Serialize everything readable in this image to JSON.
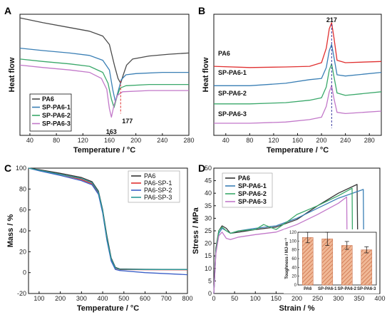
{
  "chart_data": [
    {
      "panel": "A",
      "type": "line",
      "xlabel": "Temperature / °C",
      "ylabel": "Heat flow",
      "xlim": [
        25,
        280
      ],
      "xticks": [
        40,
        80,
        120,
        160,
        200,
        240,
        280
      ],
      "legend_position": "bottom-left",
      "annotations": [
        "177",
        "163"
      ],
      "series": [
        {
          "name": "PA6",
          "color": "#4a4a4a",
          "points": [
            [
              25,
              0.97
            ],
            [
              60,
              0.93
            ],
            [
              100,
              0.89
            ],
            [
              130,
              0.86
            ],
            [
              150,
              0.82
            ],
            [
              160,
              0.75
            ],
            [
              168,
              0.57
            ],
            [
              173,
              0.47
            ],
            [
              177,
              0.43
            ],
            [
              181,
              0.5
            ],
            [
              186,
              0.58
            ],
            [
              195,
              0.63
            ],
            [
              220,
              0.655
            ],
            [
              250,
              0.67
            ],
            [
              280,
              0.68
            ]
          ]
        },
        {
          "name": "SP-PA6-1",
          "color": "#3a7fb5",
          "points": [
            [
              25,
              0.72
            ],
            [
              60,
              0.7
            ],
            [
              100,
              0.68
            ],
            [
              130,
              0.66
            ],
            [
              150,
              0.62
            ],
            [
              160,
              0.54
            ],
            [
              165,
              0.38
            ],
            [
              169,
              0.28
            ],
            [
              173,
              0.36
            ],
            [
              178,
              0.46
            ],
            [
              185,
              0.5
            ],
            [
              200,
              0.51
            ],
            [
              240,
              0.52
            ],
            [
              280,
              0.52
            ]
          ]
        },
        {
          "name": "SP-PA6-2",
          "color": "#3aa86a",
          "points": [
            [
              25,
              0.63
            ],
            [
              60,
              0.61
            ],
            [
              100,
              0.59
            ],
            [
              130,
              0.57
            ],
            [
              150,
              0.52
            ],
            [
              158,
              0.43
            ],
            [
              163,
              0.3
            ],
            [
              167,
              0.23
            ],
            [
              171,
              0.31
            ],
            [
              176,
              0.39
            ],
            [
              185,
              0.41
            ],
            [
              220,
              0.42
            ],
            [
              280,
              0.42
            ]
          ]
        },
        {
          "name": "SP-PA6-3",
          "color": "#c278c9",
          "points": [
            [
              25,
              0.58
            ],
            [
              60,
              0.56
            ],
            [
              100,
              0.54
            ],
            [
              130,
              0.52
            ],
            [
              148,
              0.47
            ],
            [
              156,
              0.38
            ],
            [
              160,
              0.22
            ],
            [
              163,
              0.15
            ],
            [
              167,
              0.25
            ],
            [
              172,
              0.33
            ],
            [
              180,
              0.36
            ],
            [
              220,
              0.37
            ],
            [
              280,
              0.37
            ]
          ]
        }
      ]
    },
    {
      "panel": "B",
      "type": "line",
      "xlabel": "Temperature / °C",
      "ylabel": "Heat flow",
      "xlim": [
        20,
        300
      ],
      "xticks": [
        40,
        80,
        120,
        160,
        200,
        240,
        280
      ],
      "annotations": [
        "217"
      ],
      "series": [
        {
          "name": "PA6",
          "color": "#e03030",
          "points": [
            [
              20,
              0.57
            ],
            [
              80,
              0.56
            ],
            [
              140,
              0.565
            ],
            [
              180,
              0.57
            ],
            [
              200,
              0.6
            ],
            [
              208,
              0.72
            ],
            [
              213,
              0.88
            ],
            [
              217,
              0.93
            ],
            [
              221,
              0.8
            ],
            [
              226,
              0.62
            ],
            [
              240,
              0.6
            ],
            [
              300,
              0.61
            ]
          ]
        },
        {
          "name": "SP-PA6-1",
          "color": "#3a7fb5",
          "points": [
            [
              20,
              0.41
            ],
            [
              80,
              0.41
            ],
            [
              140,
              0.43
            ],
            [
              180,
              0.46
            ],
            [
              200,
              0.47
            ],
            [
              208,
              0.56
            ],
            [
              213,
              0.7
            ],
            [
              217,
              0.75
            ],
            [
              221,
              0.64
            ],
            [
              226,
              0.5
            ],
            [
              240,
              0.49
            ],
            [
              300,
              0.52
            ]
          ]
        },
        {
          "name": "SP-PA6-2",
          "color": "#3aa86a",
          "points": [
            [
              20,
              0.26
            ],
            [
              80,
              0.26
            ],
            [
              140,
              0.27
            ],
            [
              180,
              0.29
            ],
            [
              200,
              0.31
            ],
            [
              208,
              0.4
            ],
            [
              213,
              0.54
            ],
            [
              217,
              0.59
            ],
            [
              221,
              0.48
            ],
            [
              226,
              0.35
            ],
            [
              240,
              0.33
            ],
            [
              300,
              0.36
            ]
          ]
        },
        {
          "name": "SP-PA6-3",
          "color": "#c278c9",
          "points": [
            [
              20,
              0.1
            ],
            [
              80,
              0.1
            ],
            [
              140,
              0.11
            ],
            [
              180,
              0.13
            ],
            [
              200,
              0.15
            ],
            [
              208,
              0.24
            ],
            [
              213,
              0.36
            ],
            [
              217,
              0.41
            ],
            [
              221,
              0.3
            ],
            [
              226,
              0.19
            ],
            [
              240,
              0.18
            ],
            [
              300,
              0.2
            ]
          ]
        }
      ],
      "series_labels": [
        "PA6",
        "SP-PA6-1",
        "SP-PA6-2",
        "SP-PA6-3"
      ]
    },
    {
      "panel": "C",
      "type": "line",
      "xlabel": "Temperature / °C",
      "ylabel": "Mass / %",
      "xlim": [
        50,
        800
      ],
      "ylim": [
        -20,
        100
      ],
      "xticks": [
        100,
        200,
        300,
        400,
        500,
        600,
        700,
        800
      ],
      "yticks": [
        -20,
        0,
        20,
        40,
        60,
        80,
        100
      ],
      "legend_position": "top-right",
      "series": [
        {
          "name": "PA6",
          "color": "#333333",
          "points": [
            [
              50,
              100
            ],
            [
              100,
              98.5
            ],
            [
              200,
              95
            ],
            [
              300,
              91
            ],
            [
              350,
              87
            ],
            [
              380,
              78
            ],
            [
              400,
              60
            ],
            [
              420,
              35
            ],
            [
              440,
              14
            ],
            [
              460,
              5
            ],
            [
              480,
              3.5
            ],
            [
              600,
              3.2
            ],
            [
              800,
              3
            ]
          ]
        },
        {
          "name": "PA6-SP-1",
          "color": "#e03030",
          "points": [
            [
              50,
              100
            ],
            [
              100,
              98
            ],
            [
              200,
              94
            ],
            [
              300,
              89
            ],
            [
              350,
              85
            ],
            [
              380,
              76
            ],
            [
              400,
              58
            ],
            [
              420,
              32
            ],
            [
              440,
              12
            ],
            [
              460,
              4
            ],
            [
              480,
              3
            ],
            [
              600,
              2.8
            ],
            [
              800,
              2.7
            ]
          ]
        },
        {
          "name": "PA6-SP-2",
          "color": "#3a5fc8",
          "points": [
            [
              50,
              100
            ],
            [
              100,
              97.5
            ],
            [
              200,
              93
            ],
            [
              300,
              88
            ],
            [
              350,
              84
            ],
            [
              380,
              75
            ],
            [
              400,
              57
            ],
            [
              420,
              31
            ],
            [
              440,
              11
            ],
            [
              460,
              3
            ],
            [
              480,
              2
            ],
            [
              600,
              0
            ],
            [
              800,
              -2
            ]
          ]
        },
        {
          "name": "PA6-SP-3",
          "color": "#2a9a9a",
          "points": [
            [
              50,
              100
            ],
            [
              100,
              98
            ],
            [
              200,
              94
            ],
            [
              300,
              90
            ],
            [
              350,
              86
            ],
            [
              380,
              77
            ],
            [
              400,
              59
            ],
            [
              420,
              33
            ],
            [
              440,
              13
            ],
            [
              460,
              4.5
            ],
            [
              480,
              3.2
            ],
            [
              600,
              3
            ],
            [
              800,
              3
            ]
          ]
        }
      ]
    },
    {
      "panel": "D",
      "type": "line",
      "xlabel": "Strain / %",
      "ylabel": "Stress / MPa",
      "xlim": [
        0,
        400
      ],
      "ylim": [
        0,
        50
      ],
      "xticks": [
        0,
        50,
        100,
        150,
        200,
        250,
        300,
        350,
        400
      ],
      "yticks": [
        0,
        5,
        10,
        15,
        20,
        25,
        30,
        35,
        40,
        45,
        50
      ],
      "legend_position": "top-left",
      "series": [
        {
          "name": "PA6",
          "color": "#333333",
          "points": [
            [
              0,
              0
            ],
            [
              5,
              18
            ],
            [
              12,
              25
            ],
            [
              20,
              27
            ],
            [
              30,
              26
            ],
            [
              40,
              24
            ],
            [
              60,
              24.5
            ],
            [
              100,
              25.5
            ],
            [
              150,
              26.5
            ],
            [
              200,
              29.5
            ],
            [
              250,
              35
            ],
            [
              300,
              40
            ],
            [
              345,
              43.5
            ],
            [
              348,
              0
            ]
          ]
        },
        {
          "name": "SP-PA6-1",
          "color": "#3a7fb5",
          "points": [
            [
              0,
              0
            ],
            [
              5,
              17
            ],
            [
              12,
              24
            ],
            [
              20,
              26
            ],
            [
              30,
              25
            ],
            [
              40,
              24
            ],
            [
              60,
              25
            ],
            [
              100,
              26
            ],
            [
              150,
              27
            ],
            [
              200,
              30
            ],
            [
              250,
              34
            ],
            [
              300,
              38
            ],
            [
              360,
              41.5
            ],
            [
              362,
              0
            ]
          ]
        },
        {
          "name": "SP-PA6-2",
          "color": "#3aa86a",
          "points": [
            [
              0,
              0
            ],
            [
              5,
              17
            ],
            [
              12,
              25
            ],
            [
              20,
              26.5
            ],
            [
              30,
              25
            ],
            [
              40,
              24
            ],
            [
              60,
              25
            ],
            [
              100,
              25.5
            ],
            [
              120,
              27.5
            ],
            [
              150,
              25.5
            ],
            [
              180,
              29
            ],
            [
              200,
              31.5
            ],
            [
              250,
              35
            ],
            [
              300,
              39
            ],
            [
              333,
              42
            ],
            [
              335,
              0
            ]
          ]
        },
        {
          "name": "SP-PA6-3",
          "color": "#c278c9",
          "points": [
            [
              0,
              0
            ],
            [
              5,
              16
            ],
            [
              12,
              23
            ],
            [
              20,
              24.5
            ],
            [
              30,
              22
            ],
            [
              40,
              21.5
            ],
            [
              60,
              22.5
            ],
            [
              100,
              23.5
            ],
            [
              150,
              24.5
            ],
            [
              200,
              27.5
            ],
            [
              250,
              31.5
            ],
            [
              300,
              36
            ],
            [
              320,
              38.5
            ],
            [
              322,
              0
            ]
          ]
        }
      ],
      "inset": {
        "type": "bar",
        "ylabel": "Toughness / MJ·m⁻³",
        "ylim": [
          0,
          120
        ],
        "yticks": [
          0,
          20,
          40,
          60,
          80,
          100,
          120
        ],
        "categories": [
          "PA6",
          "SP-PA6-1",
          "SP-PA6-2",
          "SP-PA6-3"
        ],
        "values": [
          108,
          105,
          90,
          80
        ],
        "errors": [
          12,
          15,
          9,
          7
        ],
        "color": "#e8a07a",
        "hatch_color": "#c0603a"
      }
    }
  ]
}
